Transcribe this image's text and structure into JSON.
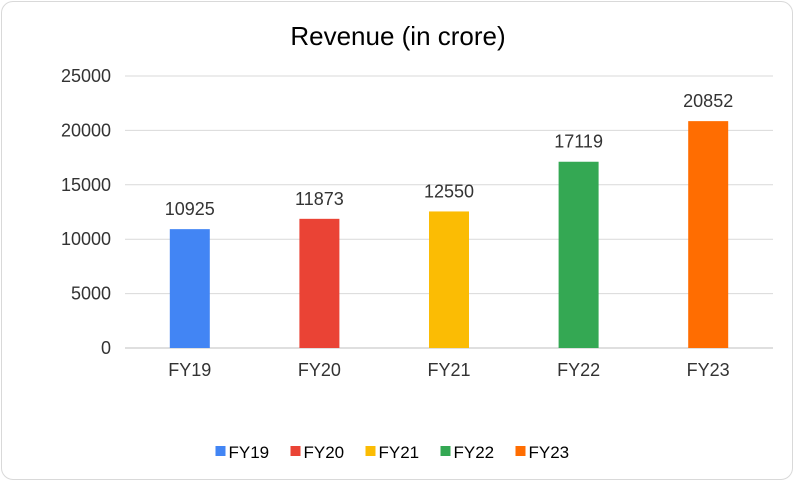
{
  "chart_data": {
    "type": "bar",
    "title": "Revenue (in crore)",
    "xlabel": "",
    "ylabel": "",
    "categories": [
      "FY19",
      "FY20",
      "FY21",
      "FY22",
      "FY23"
    ],
    "values": [
      10925,
      11873,
      12550,
      17119,
      20852
    ],
    "colors": [
      "#4285f4",
      "#ea4335",
      "#fbbc04",
      "#34a853",
      "#ff6d01"
    ],
    "ylim": [
      0,
      25000
    ],
    "yticks": [
      0,
      5000,
      10000,
      15000,
      20000,
      25000
    ],
    "grid": true,
    "legend": "bottom",
    "legend_entries": [
      "FY19",
      "FY20",
      "FY21",
      "FY22",
      "FY23"
    ]
  }
}
